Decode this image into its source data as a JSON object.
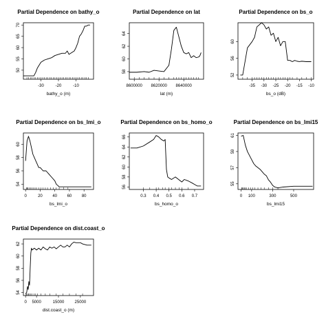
{
  "chart_data": [
    {
      "type": "line",
      "title": "Partial Dependence on bathy_o",
      "xlabel": "bathy_o (m)",
      "ylabel": "",
      "xlim": [
        -40,
        0
      ],
      "ylim": [
        46,
        71
      ],
      "xticks": [
        -30,
        -20,
        -10
      ],
      "yticks": [
        50,
        55,
        60,
        65,
        70
      ],
      "rug": [
        -38,
        -37,
        -36,
        -35,
        -34,
        -33,
        -32,
        -31,
        -30,
        -29,
        -28,
        -27,
        -26,
        -25,
        -24,
        -23,
        -22,
        -21,
        -20,
        -19,
        -18,
        -17,
        -16,
        -15,
        -14,
        -13,
        -12,
        -11,
        -10,
        -9,
        -8,
        -7,
        -6,
        -5,
        -4,
        -3
      ],
      "x": [
        -40,
        -34,
        -33,
        -32,
        -30,
        -28,
        -26,
        -24,
        -22,
        -20,
        -18,
        -16,
        -15,
        -14,
        -13,
        -12,
        -11,
        -10,
        -9,
        -8,
        -7,
        -6,
        -5,
        -4,
        -3,
        -2
      ],
      "y": [
        47.5,
        47.5,
        49,
        51,
        53.5,
        54.5,
        55,
        55.5,
        56.5,
        57,
        57.5,
        57.5,
        58.5,
        57,
        57.5,
        58,
        58.5,
        60,
        62,
        65,
        66,
        67.5,
        69.5,
        69.5,
        70,
        70
      ]
    },
    {
      "type": "line",
      "title": "Partial Dependence on lat",
      "xlabel": "lat (m)",
      "ylabel": "",
      "xlim": [
        8596000,
        8656000
      ],
      "ylim": [
        56.8,
        65.7
      ],
      "xticks": [
        8600000,
        8620000,
        8640000
      ],
      "xticklabels": [
        "8600000",
        "8620000",
        "8640000"
      ],
      "yticks": [
        58,
        60,
        62,
        64
      ],
      "rug": [
        8600000,
        8604000,
        8608000,
        8612000,
        8616000,
        8620000,
        8624000,
        8628000,
        8632000,
        8634000,
        8636000,
        8638000,
        8640000,
        8642000,
        8644000,
        8646000,
        8648000,
        8650000,
        8652000
      ],
      "x": [
        8596000,
        8602000,
        8608000,
        8612000,
        8616000,
        8620000,
        8624000,
        8628000,
        8630000,
        8632000,
        8634000,
        8636000,
        8638000,
        8640000,
        8642000,
        8644000,
        8646000,
        8648000,
        8650000,
        8652000,
        8653000,
        8654000
      ],
      "y": [
        57.9,
        57.9,
        58.0,
        57.9,
        58.2,
        58.1,
        58.0,
        59.0,
        61.5,
        64.5,
        65.0,
        63.5,
        62.0,
        61.0,
        60.8,
        61.0,
        60.2,
        60.5,
        60.2,
        60.3,
        60.5,
        61.0
      ]
    },
    {
      "type": "line",
      "title": "Partial Dependence on bs_o",
      "xlabel": "bs_o (dB)",
      "ylabel": "",
      "xlim": [
        -41,
        -9
      ],
      "ylim": [
        51,
        64.5
      ],
      "xticks": [
        -35,
        -30,
        -25,
        -20,
        -15,
        -10
      ],
      "yticks": [
        52,
        56,
        60
      ],
      "rug": [
        -39,
        -37,
        -35,
        -34,
        -33,
        -32,
        -31,
        -30,
        -29,
        -28,
        -27,
        -26,
        -25,
        -24,
        -23,
        -22,
        -21,
        -20,
        -19,
        -18,
        -16,
        -14,
        -12,
        -10
      ],
      "x": [
        -40,
        -39,
        -37,
        -35,
        -34,
        -33,
        -31,
        -30,
        -29,
        -28,
        -27,
        -26,
        -25,
        -24,
        -23,
        -22,
        -21,
        -20,
        -19,
        -18,
        -17,
        -16,
        -15,
        -14,
        -12,
        -10
      ],
      "y": [
        52,
        52,
        58.5,
        60,
        61,
        63.5,
        64.5,
        64.0,
        63,
        63.5,
        61.5,
        62,
        60,
        61,
        59,
        60,
        60,
        55.5,
        55.5,
        55.2,
        55.5,
        55.3,
        55.2,
        55.3,
        55.2,
        55.2
      ]
    },
    {
      "type": "line",
      "title": "Partial Dependence on bs_lmi_o",
      "xlabel": "bs_lmi_o",
      "ylabel": "",
      "xlim": [
        -3,
        93
      ],
      "ylim": [
        53.2,
        61.7
      ],
      "xticks": [
        0,
        20,
        40,
        60,
        80
      ],
      "yticks": [
        54,
        56,
        58,
        60
      ],
      "rug": [
        1,
        2,
        3,
        5,
        7,
        9,
        11,
        13,
        15,
        18,
        21,
        24,
        27,
        30,
        34,
        38,
        42,
        46,
        52,
        58
      ],
      "x": [
        0,
        2,
        4,
        6,
        8,
        10,
        12,
        14,
        16,
        18,
        20,
        24,
        28,
        32,
        36,
        40,
        42,
        44,
        46,
        50,
        60,
        70,
        80,
        90
      ],
      "y": [
        57.5,
        60.5,
        61.2,
        60.5,
        59.5,
        58.5,
        58.0,
        57.5,
        57.0,
        56.5,
        56.5,
        56.0,
        56.0,
        55.5,
        55.0,
        54.5,
        54.0,
        53.8,
        53.6,
        53.6,
        53.6,
        53.6,
        53.6,
        53.6
      ]
    },
    {
      "type": "line",
      "title": "Partial Dependence on bs_homo_o",
      "xlabel": "bs_homo_o",
      "ylabel": "",
      "xlim": [
        0.19,
        0.77
      ],
      "ylim": [
        55.5,
        66.8
      ],
      "xticks": [
        0.3,
        0.4,
        0.5,
        0.6,
        0.7
      ],
      "yticks": [
        56,
        58,
        60,
        62,
        64,
        66
      ],
      "rug": [
        0.3,
        0.35,
        0.4,
        0.42,
        0.45,
        0.47,
        0.5,
        0.52,
        0.55,
        0.58,
        0.6,
        0.65
      ],
      "x": [
        0.2,
        0.25,
        0.3,
        0.35,
        0.38,
        0.4,
        0.42,
        0.44,
        0.46,
        0.47,
        0.48,
        0.49,
        0.5,
        0.52,
        0.55,
        0.58,
        0.6,
        0.62,
        0.65,
        0.68,
        0.7,
        0.72,
        0.75
      ],
      "y": [
        63.8,
        63.8,
        64.2,
        65.0,
        65.5,
        66.3,
        66.0,
        65.5,
        65.2,
        65.5,
        59.5,
        58.0,
        57.8,
        57.5,
        58.0,
        57.4,
        57.0,
        57.5,
        57.2,
        56.8,
        56.5,
        56.2,
        56.2
      ]
    },
    {
      "type": "line",
      "title": "Partial Dependence on bs_lmi15",
      "xlabel": "bs_lmi15",
      "ylabel": "",
      "xlim": [
        -30,
        690
      ],
      "ylim": [
        54.3,
        61.3
      ],
      "xticks": [
        0,
        100,
        300,
        500
      ],
      "yticks": [
        55,
        57,
        59,
        61
      ],
      "rug": [
        5,
        10,
        20,
        30,
        40,
        50,
        70,
        90,
        110,
        130,
        160,
        190,
        220,
        260,
        300,
        350
      ],
      "x": [
        0,
        20,
        40,
        60,
        80,
        100,
        120,
        140,
        160,
        180,
        200,
        220,
        240,
        260,
        280,
        300,
        320,
        350,
        400,
        500,
        600,
        680
      ],
      "y": [
        60.9,
        61.0,
        59.8,
        59.0,
        58.5,
        58.0,
        57.5,
        57.2,
        57.0,
        56.8,
        56.5,
        56.2,
        56.0,
        55.5,
        55.2,
        54.8,
        54.6,
        54.5,
        54.6,
        54.7,
        54.7,
        54.7
      ]
    },
    {
      "type": "line",
      "title": "Partial Dependence on dist.coast_o",
      "xlabel": "dist.coast_o (m)",
      "ylabel": "",
      "xlim": [
        -1000,
        31000
      ],
      "ylim": [
        53.5,
        62.8
      ],
      "xticks": [
        0,
        5000,
        15000,
        25000
      ],
      "yticks": [
        54,
        56,
        58,
        60,
        62
      ],
      "rug": [
        200,
        500,
        900,
        1300,
        1800,
        2400,
        3000,
        3800,
        4600,
        5500,
        7000,
        9000,
        11000,
        14000,
        17000,
        20000,
        23000,
        26000
      ],
      "x": [
        0,
        500,
        900,
        1200,
        1500,
        1800,
        2100,
        2400,
        2700,
        3000,
        4000,
        5000,
        6000,
        7000,
        8000,
        9000,
        10000,
        11000,
        12000,
        13000,
        14000,
        15000,
        16000,
        17000,
        18000,
        19000,
        20000,
        21000,
        22000,
        23000,
        24000,
        25000,
        26000,
        27000,
        28000,
        29000,
        30000
      ],
      "y": [
        53.8,
        54.0,
        55.0,
        54.5,
        55.8,
        55.2,
        58.0,
        60.5,
        61.3,
        61.0,
        61.3,
        61.0,
        61.3,
        61.0,
        61.5,
        61.2,
        61.0,
        61.5,
        61.3,
        61.5,
        61.2,
        61.5,
        61.8,
        61.5,
        61.5,
        61.8,
        61.5,
        62.0,
        62.3,
        62.2,
        62.2,
        62.2,
        62.0,
        61.9,
        61.8,
        61.8,
        61.8
      ]
    }
  ]
}
